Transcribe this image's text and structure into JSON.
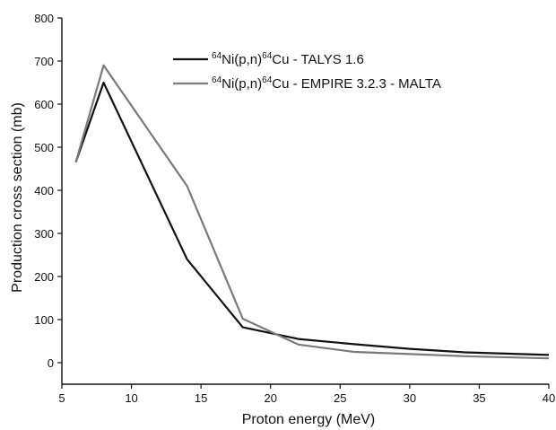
{
  "chart_data": {
    "type": "line",
    "title": "",
    "xlabel": "Proton energy (MeV)",
    "ylabel": "Production cross section (mb)",
    "xlim": [
      5,
      40
    ],
    "ylim": [
      -50,
      800
    ],
    "xticks": [
      5,
      10,
      15,
      20,
      25,
      30,
      35,
      40
    ],
    "yticks": [
      0,
      100,
      200,
      300,
      400,
      500,
      600,
      700,
      800
    ],
    "xtick_labels": [
      "5",
      "10",
      "15",
      "20",
      "25",
      "30",
      "35",
      "40"
    ],
    "ytick_labels": [
      "0",
      "100",
      "200",
      "300",
      "400",
      "500",
      "600",
      "700",
      "800"
    ],
    "grid": false,
    "legend_position": "top-right",
    "series": [
      {
        "name_parts": {
          "sup1": "64",
          "a": "Ni(p,n)",
          "sup2": "64",
          "b": "Cu - TALYS 1.6"
        },
        "color": "#111111",
        "x": [
          6,
          8,
          14,
          18,
          22,
          26,
          30,
          34,
          40
        ],
        "y": [
          465,
          650,
          240,
          82,
          55,
          43,
          32,
          24,
          18
        ]
      },
      {
        "name_parts": {
          "sup1": "64",
          "a": "Ni(p,n)",
          "sup2": "64",
          "b": "Cu - EMPIRE 3.2.3 - MALTA"
        },
        "color": "#7a7a7a",
        "x": [
          6,
          8,
          14,
          18,
          22,
          26,
          30,
          34,
          40
        ],
        "y": [
          465,
          690,
          410,
          102,
          42,
          25,
          20,
          15,
          10
        ]
      }
    ]
  }
}
